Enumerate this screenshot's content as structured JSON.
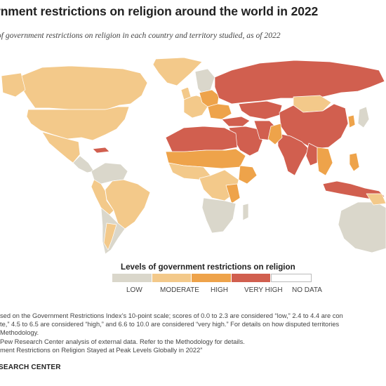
{
  "header": {
    "title": "rnment restrictions on religion around the world in 2022",
    "subtitle": "of government restrictions on religion in each country and territory studied, as of 2022"
  },
  "colors": {
    "low": "#dad7cb",
    "moderate": "#f3c98a",
    "high": "#eea34a",
    "very_high": "#d15f4f",
    "no_data": "#ffffff",
    "ocean": "#ffffff",
    "border": "#ffffff"
  },
  "legend": {
    "title": "Levels of government restrictions on religion",
    "items": [
      {
        "key": "low",
        "label": "LOW"
      },
      {
        "key": "moderate",
        "label": "MODERATE"
      },
      {
        "key": "high",
        "label": "HIGH"
      },
      {
        "key": "very_high",
        "label": "VERY HIGH"
      },
      {
        "key": "no_data",
        "label": "NO DATA"
      }
    ]
  },
  "notes": [
    "sed on the Government Restrictions Index’s 10-point scale; scores of 0.0 to 2.3 are considered “low,” 2.4 to 4.4 are con",
    "te,” 4.5 to 6.5 are considered “high,” and 6.6 to 10.0 are considered “very high.” For details on how disputed territories",
    "Methodology.",
    "Pew Research Center analysis of external data. Refer to the Methodology for details.",
    "ment Restrictions on Religion Stayed at Peak Levels Globally in 2022”"
  ],
  "footer": {
    "source": "SEARCH CENTER"
  }
}
